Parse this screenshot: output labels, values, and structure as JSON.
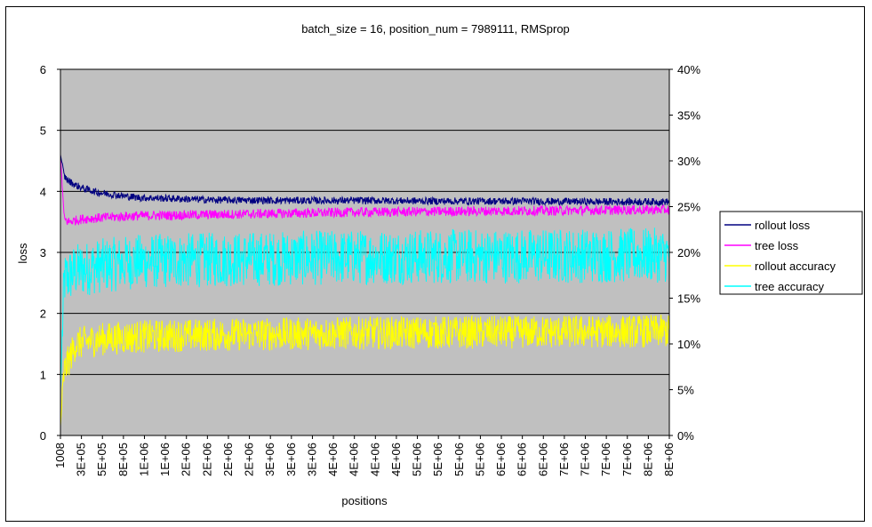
{
  "chart_data": {
    "type": "line",
    "title": "batch_size = 16, position_num = 7989111, RMSprop",
    "xlabel": "positions",
    "ylabel": "loss",
    "y_left": {
      "range": [
        0,
        6
      ],
      "ticks": [
        "0",
        "1",
        "2",
        "3",
        "4",
        "5",
        "6"
      ]
    },
    "y_right": {
      "range": [
        0,
        0.4
      ],
      "ticks": [
        "0%",
        "5%",
        "10%",
        "15%",
        "20%",
        "25%",
        "30%",
        "35%",
        "40%"
      ]
    },
    "x_range": [
      1008,
      7989111
    ],
    "x_ticks": [
      "1008",
      "3E+05",
      "5E+05",
      "8E+05",
      "1E+06",
      "1E+06",
      "2E+06",
      "2E+06",
      "2E+06",
      "2E+06",
      "3E+06",
      "3E+06",
      "3E+06",
      "4E+06",
      "4E+06",
      "4E+06",
      "4E+06",
      "5E+06",
      "5E+06",
      "5E+06",
      "5E+06",
      "6E+06",
      "6E+06",
      "6E+06",
      "7E+06",
      "7E+06",
      "7E+06",
      "7E+06",
      "8E+06",
      "8E+06"
    ],
    "grid": true,
    "legend_position": "right",
    "plot_background": "#c0c0c0",
    "series": [
      {
        "name": "rollout loss",
        "axis": "left",
        "color": "#000080",
        "x": [
          1008,
          50000,
          100000,
          200000,
          300000,
          500000,
          800000,
          1000000,
          1500000,
          2000000,
          3000000,
          4000000,
          5000000,
          6000000,
          7000000,
          7989111
        ],
        "y": [
          4.6,
          4.25,
          4.18,
          4.1,
          4.05,
          3.98,
          3.93,
          3.9,
          3.88,
          3.86,
          3.85,
          3.85,
          3.84,
          3.84,
          3.83,
          3.83
        ],
        "noise": 0.06
      },
      {
        "name": "tree loss",
        "axis": "left",
        "color": "#ff00ff",
        "x": [
          1008,
          50000,
          100000,
          300000,
          1000000,
          2000000,
          3000000,
          4000000,
          5000000,
          6000000,
          7000000,
          7989111
        ],
        "y": [
          4.6,
          3.55,
          3.5,
          3.55,
          3.6,
          3.62,
          3.64,
          3.66,
          3.67,
          3.68,
          3.69,
          3.7
        ],
        "noise": 0.08
      },
      {
        "name": "rollout accuracy",
        "axis": "right",
        "color": "#ffff00",
        "x": [
          1008,
          50000,
          200000,
          500000,
          1000000,
          2000000,
          4000000,
          6000000,
          7989111
        ],
        "y": [
          0.01,
          0.07,
          0.1,
          0.105,
          0.108,
          0.11,
          0.112,
          0.113,
          0.114
        ],
        "noise": 0.018
      },
      {
        "name": "tree accuracy",
        "axis": "right",
        "color": "#00ffff",
        "x": [
          1008,
          50000,
          200000,
          500000,
          1000000,
          2000000,
          4000000,
          6000000,
          7989111
        ],
        "y": [
          0.05,
          0.17,
          0.18,
          0.185,
          0.19,
          0.192,
          0.195,
          0.196,
          0.197
        ],
        "noise": 0.03
      }
    ]
  }
}
